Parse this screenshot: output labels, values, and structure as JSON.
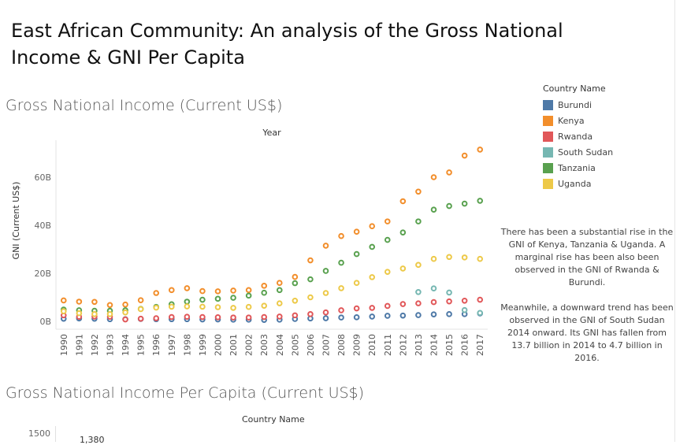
{
  "dashboard": {
    "title": "East African Community: An analysis of the Gross National Income & GNI Per Capita"
  },
  "sheet1": {
    "title": "Gross National Income (Current US$)",
    "header": "Year",
    "ylabel": "GNI (Current US$)"
  },
  "legend": {
    "title": "Country Name",
    "items": [
      {
        "label": "Burundi",
        "color": "#4e79a7"
      },
      {
        "label": "Kenya",
        "color": "#f28e2b"
      },
      {
        "label": "Rwanda",
        "color": "#e15759"
      },
      {
        "label": "South Sudan",
        "color": "#76b7b2"
      },
      {
        "label": "Tanzania",
        "color": "#59a14f"
      },
      {
        "label": "Uganda",
        "color": "#edc948"
      }
    ]
  },
  "annotation": {
    "p1": "There has been a substantial rise in the GNI of Kenya, Tanzania & Uganda. A marginal rise has been also been observed in the GNI of Rwanda & Burundi.",
    "p2": "Meanwhile, a downward trend has been observed in the GNI of South Sudan 2014 onward. Its GNI has fallen from 13.7 billion in 2014 to 4.7 billion in 2016."
  },
  "sheet2": {
    "title": "Gross National Income Per Capita (Current US$)",
    "header": "Country Name",
    "ytick": "1500",
    "partial_label": "1,380"
  },
  "chart_data": {
    "type": "scatter",
    "title": "Gross National Income (Current US$)",
    "xlabel": "Year",
    "ylabel": "GNI (Current US$)",
    "x": [
      "1990",
      "1991",
      "1992",
      "1993",
      "1994",
      "1995",
      "1996",
      "1997",
      "1998",
      "1999",
      "2000",
      "2001",
      "2002",
      "2003",
      "2004",
      "2005",
      "2006",
      "2007",
      "2008",
      "2009",
      "2010",
      "2011",
      "2012",
      "2013",
      "2014",
      "2015",
      "2016",
      "2017"
    ],
    "ylim": [
      0,
      75
    ],
    "yticks": [
      0,
      20,
      40,
      60
    ],
    "ytick_labels": [
      "0B",
      "20B",
      "40B",
      "60B"
    ],
    "grid": false,
    "legend_position": "right",
    "series": [
      {
        "name": "Burundi",
        "color": "#4e79a7",
        "values": [
          1.1,
          1.2,
          1.1,
          0.9,
          0.9,
          1.0,
          0.9,
          0.9,
          0.9,
          0.8,
          0.8,
          0.7,
          0.7,
          0.6,
          0.7,
          1.0,
          1.2,
          1.3,
          1.6,
          1.7,
          2.0,
          2.3,
          2.4,
          2.6,
          2.9,
          3.0,
          3.0,
          3.3
        ]
      },
      {
        "name": "Kenya",
        "color": "#f28e2b",
        "values": [
          8.7,
          8.2,
          8.1,
          6.8,
          7.0,
          8.8,
          11.8,
          13.0,
          13.8,
          12.6,
          12.5,
          12.8,
          13.0,
          14.8,
          16.0,
          18.5,
          25.4,
          31.5,
          35.5,
          37.3,
          39.6,
          41.6,
          50.0,
          54.0,
          60.0,
          62.0,
          69.0,
          71.5
        ]
      },
      {
        "name": "Rwanda",
        "color": "#e15759",
        "values": [
          2.5,
          1.9,
          2.0,
          1.9,
          0.8,
          1.1,
          1.3,
          1.8,
          1.9,
          1.8,
          1.7,
          1.6,
          1.6,
          1.8,
          2.0,
          2.5,
          3.0,
          3.7,
          4.6,
          5.4,
          5.6,
          6.4,
          7.2,
          7.5,
          8.0,
          8.3,
          8.6,
          9.0
        ]
      },
      {
        "name": "South Sudan",
        "color": "#76b7b2",
        "values": [
          null,
          null,
          null,
          null,
          null,
          null,
          null,
          null,
          null,
          null,
          null,
          null,
          null,
          null,
          null,
          null,
          null,
          null,
          null,
          null,
          null,
          null,
          null,
          12.2,
          13.7,
          12.0,
          4.7,
          3.5
        ]
      },
      {
        "name": "Tanzania",
        "color": "#59a14f",
        "values": [
          4.9,
          4.6,
          4.4,
          4.4,
          4.6,
          5.2,
          6.0,
          7.1,
          8.2,
          9.0,
          9.4,
          9.8,
          10.7,
          11.9,
          13.0,
          15.9,
          17.5,
          21.0,
          24.4,
          28.0,
          31.0,
          33.9,
          37.0,
          41.6,
          46.5,
          48.0,
          49.0,
          50.2
        ]
      },
      {
        "name": "Uganda",
        "color": "#edc948",
        "values": [
          4.2,
          3.4,
          3.0,
          3.0,
          3.7,
          5.1,
          5.7,
          6.1,
          6.2,
          6.1,
          5.9,
          5.6,
          6.0,
          6.5,
          7.5,
          8.6,
          10.0,
          11.8,
          13.8,
          16.0,
          18.4,
          20.6,
          22.0,
          23.5,
          26.0,
          26.8,
          26.6,
          26.0
        ]
      }
    ]
  }
}
